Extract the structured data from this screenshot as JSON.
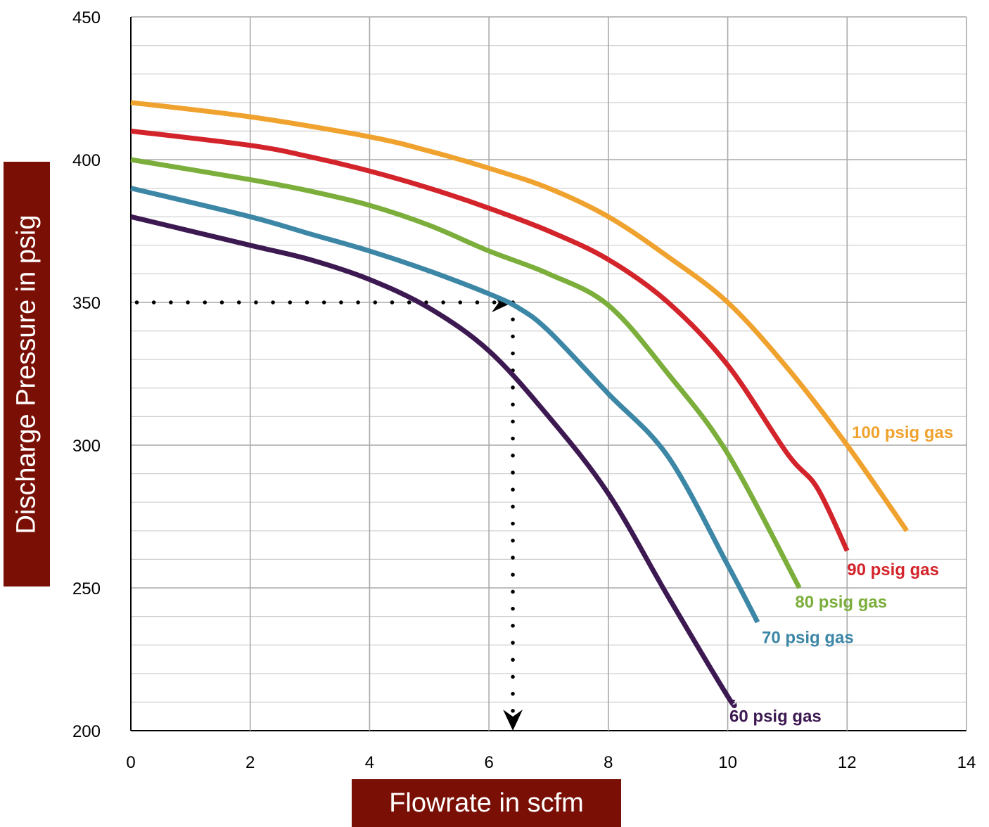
{
  "chart_data": {
    "type": "line",
    "xlabel": "Flowrate in scfm",
    "ylabel": "Discharge Pressure in psig",
    "xlim": [
      0,
      14
    ],
    "ylim": [
      200,
      450
    ],
    "x_ticks": [
      "0",
      "2",
      "4",
      "6",
      "8",
      "10",
      "12",
      "14"
    ],
    "y_ticks": [
      "200",
      "250",
      "300",
      "350",
      "400",
      "450"
    ],
    "grid": true,
    "series": [
      {
        "name": "100 psig gas",
        "color": "#f0a22e",
        "points": [
          [
            0,
            420
          ],
          [
            2,
            415
          ],
          [
            4,
            408
          ],
          [
            5,
            403
          ],
          [
            6,
            397
          ],
          [
            7,
            390
          ],
          [
            8,
            380
          ],
          [
            9,
            366
          ],
          [
            10,
            350
          ],
          [
            11,
            327
          ],
          [
            12,
            300
          ],
          [
            13,
            270
          ]
        ]
      },
      {
        "name": "90 psig gas",
        "color": "#d3242b",
        "points": [
          [
            0,
            410
          ],
          [
            2,
            405
          ],
          [
            3,
            401
          ],
          [
            4,
            396
          ],
          [
            5,
            390
          ],
          [
            6,
            383
          ],
          [
            7,
            375
          ],
          [
            8,
            365
          ],
          [
            9,
            350
          ],
          [
            10,
            328
          ],
          [
            11,
            297
          ],
          [
            11.5,
            285
          ],
          [
            12,
            263
          ]
        ]
      },
      {
        "name": "80 psig gas",
        "color": "#7bae3b",
        "points": [
          [
            0,
            400
          ],
          [
            2,
            393
          ],
          [
            3,
            389
          ],
          [
            4,
            384
          ],
          [
            5,
            377
          ],
          [
            6,
            368
          ],
          [
            7,
            360
          ],
          [
            8,
            349
          ],
          [
            9,
            325
          ],
          [
            10,
            297
          ],
          [
            11.2,
            250
          ]
        ]
      },
      {
        "name": "70 psig gas",
        "color": "#3c86a6",
        "points": [
          [
            0,
            390
          ],
          [
            2,
            380
          ],
          [
            3,
            374
          ],
          [
            4,
            368
          ],
          [
            5,
            361
          ],
          [
            6,
            353
          ],
          [
            6.5,
            348
          ],
          [
            7,
            340
          ],
          [
            8,
            318
          ],
          [
            9,
            296
          ],
          [
            10,
            258
          ],
          [
            10.5,
            238
          ]
        ]
      },
      {
        "name": "60 psig gas",
        "color": "#3d1952",
        "points": [
          [
            0,
            380
          ],
          [
            2,
            370
          ],
          [
            3,
            365
          ],
          [
            4,
            358
          ],
          [
            5,
            348
          ],
          [
            6,
            333
          ],
          [
            7,
            310
          ],
          [
            8,
            283
          ],
          [
            9,
            247
          ],
          [
            10,
            212
          ],
          [
            10.1,
            210
          ]
        ]
      }
    ],
    "annotations": [
      {
        "type": "dotted-arrow",
        "from": [
          0.1,
          350
        ],
        "to": [
          6.4,
          350
        ]
      },
      {
        "type": "dotted-arrow",
        "from": [
          6.4,
          350
        ],
        "to": [
          6.4,
          200
        ]
      }
    ]
  }
}
